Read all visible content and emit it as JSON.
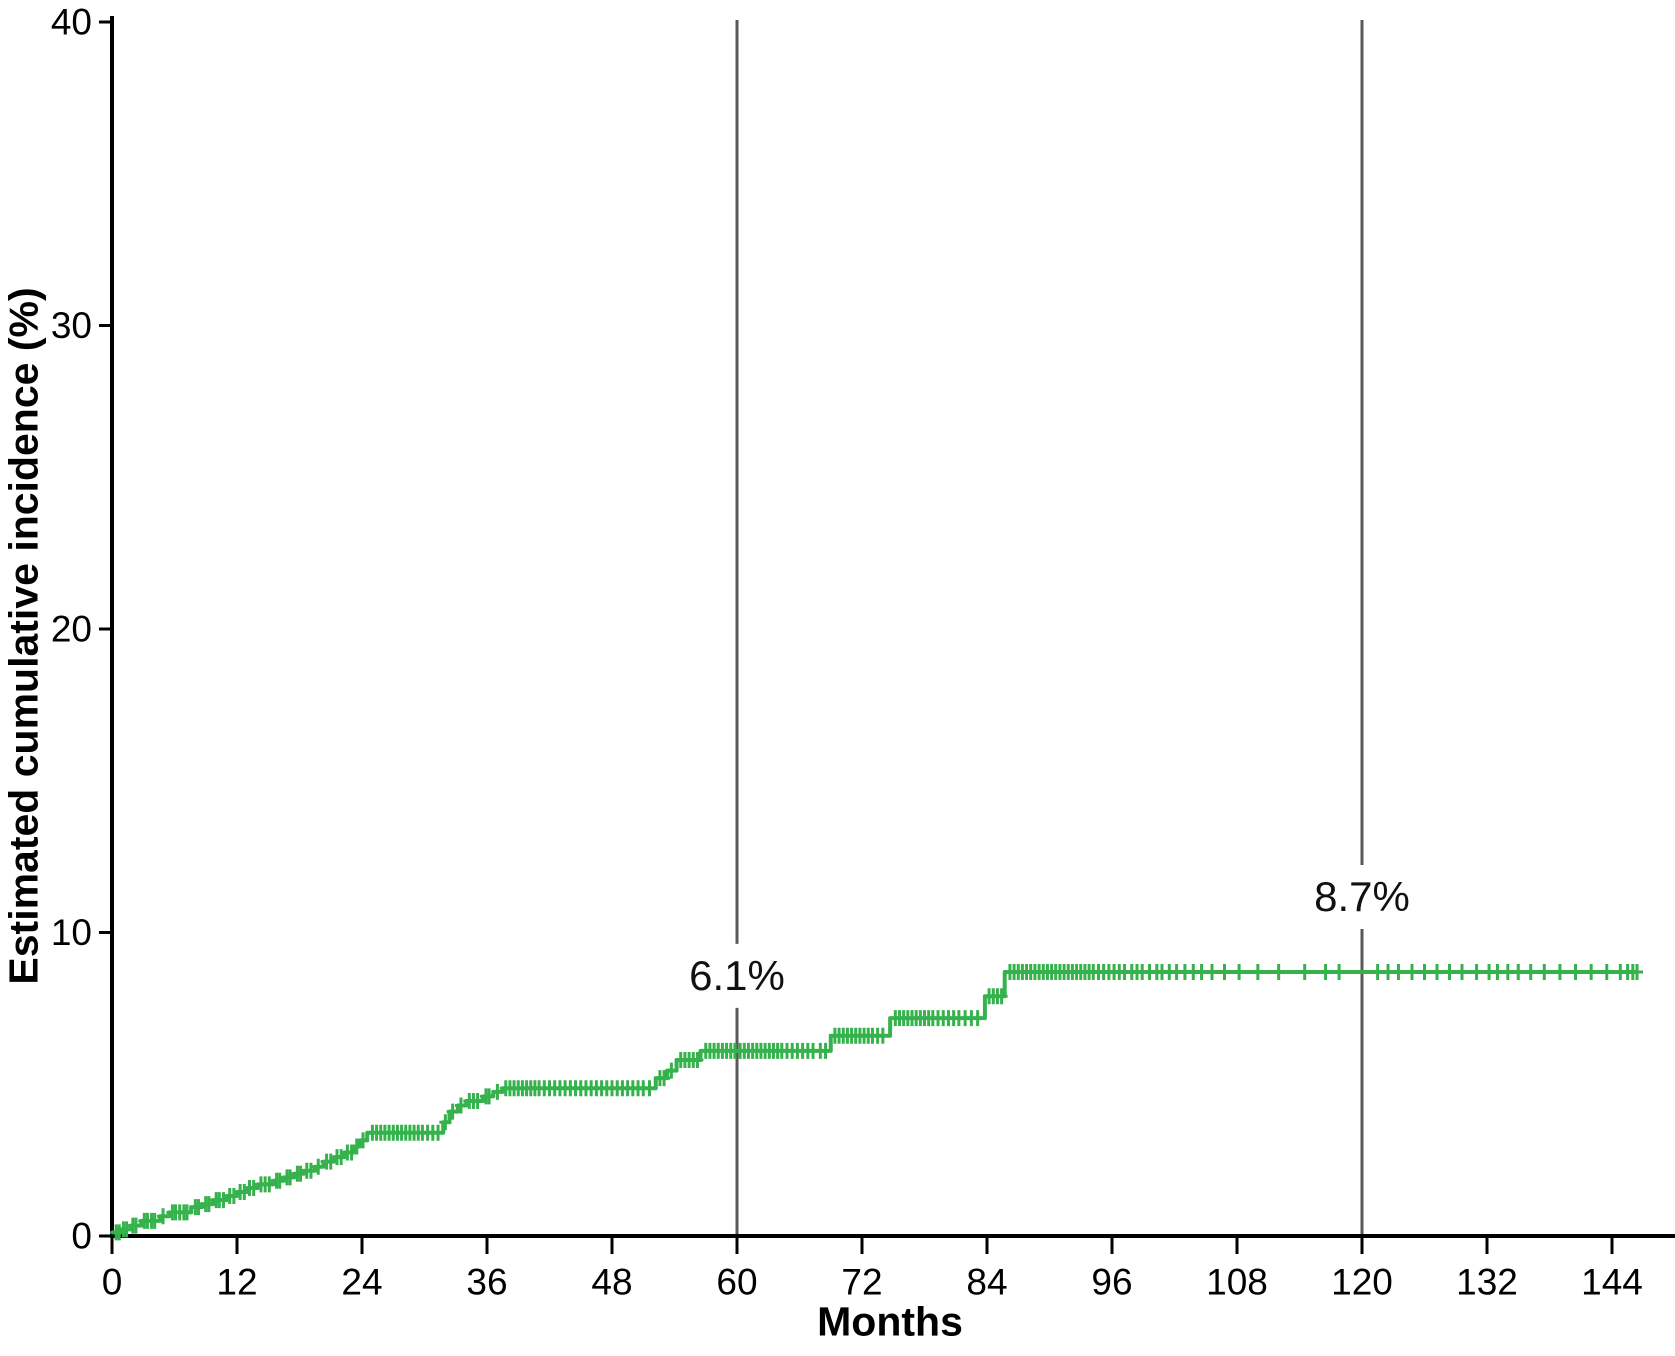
{
  "chart_data": {
    "type": "line",
    "subtype": "kaplan-meier-step-curve-with-censor-marks",
    "title": "",
    "xlabel": "Months",
    "ylabel": "Estimated cumulative incidence (%)",
    "xlim": [
      0,
      148.5
    ],
    "ylim": [
      0,
      40
    ],
    "x_ticks": [
      0,
      12,
      24,
      36,
      48,
      60,
      72,
      84,
      96,
      108,
      120,
      132,
      144
    ],
    "y_ticks": [
      0,
      10,
      20,
      30,
      40
    ],
    "grid": false,
    "legend": "none",
    "colors": {
      "curve": "#35B24C",
      "reference_line": "#595959",
      "axis": "#000000",
      "text": "#000000"
    },
    "reference_lines": [
      {
        "x": 60,
        "label": "6.1%",
        "value_at_line": 6.1
      },
      {
        "x": 120,
        "label": "8.7%",
        "value_at_line": 8.7
      }
    ],
    "series": [
      {
        "name": "Estimated cumulative incidence",
        "steps": [
          [
            0,
            0.12
          ],
          [
            0.9,
            0.22
          ],
          [
            1.8,
            0.34
          ],
          [
            2.8,
            0.5
          ],
          [
            4.6,
            0.65
          ],
          [
            5.5,
            0.78
          ],
          [
            7.6,
            0.95
          ],
          [
            8.6,
            1.05
          ],
          [
            9.7,
            1.18
          ],
          [
            11,
            1.32
          ],
          [
            12,
            1.45
          ],
          [
            13,
            1.58
          ],
          [
            14,
            1.7
          ],
          [
            15.5,
            1.82
          ],
          [
            16.5,
            1.93
          ],
          [
            17.5,
            2.05
          ],
          [
            18.4,
            2.15
          ],
          [
            19.5,
            2.28
          ],
          [
            20.3,
            2.45
          ],
          [
            21.3,
            2.6
          ],
          [
            22.3,
            2.75
          ],
          [
            23.2,
            2.95
          ],
          [
            23.8,
            3.15
          ],
          [
            24.5,
            3.4
          ],
          [
            31.8,
            3.75
          ],
          [
            32.4,
            4.1
          ],
          [
            33.2,
            4.3
          ],
          [
            34,
            4.45
          ],
          [
            35.6,
            4.6
          ],
          [
            36.6,
            4.75
          ],
          [
            37.5,
            4.87
          ],
          [
            52.2,
            5.2
          ],
          [
            53.3,
            5.45
          ],
          [
            54.2,
            5.8
          ],
          [
            56.5,
            6.1
          ],
          [
            69,
            6.6
          ],
          [
            74.7,
            7.18
          ],
          [
            83.8,
            7.9
          ],
          [
            85.7,
            8.7
          ],
          [
            146.5,
            8.7
          ]
        ]
      }
    ],
    "censor_marks_months": [
      0.4,
      0.7,
      1.1,
      1.4,
      2.0,
      2.3,
      3.1,
      3.4,
      3.8,
      4.1,
      4.9,
      5.8,
      6.1,
      6.5,
      6.9,
      7.2,
      8.0,
      8.3,
      9.0,
      9.3,
      10.0,
      10.3,
      10.7,
      11.3,
      11.7,
      12.3,
      12.7,
      13.2,
      13.6,
      14.3,
      14.7,
      15.1,
      15.8,
      16.1,
      16.8,
      17.1,
      17.8,
      18.1,
      18.7,
      19.1,
      19.8,
      20.6,
      21.0,
      21.6,
      22.0,
      22.6,
      23.0,
      23.5,
      24.1,
      25.0,
      25.4,
      25.8,
      26.2,
      26.6,
      27.0,
      27.4,
      27.8,
      28.2,
      28.6,
      29.0,
      29.4,
      29.8,
      30.3,
      30.8,
      31.3,
      32.0,
      32.7,
      33.5,
      34.3,
      34.7,
      35.1,
      35.9,
      36.2,
      37.0,
      37.8,
      38.2,
      38.6,
      39.0,
      39.4,
      39.8,
      40.2,
      40.6,
      41.0,
      41.5,
      42.0,
      42.5,
      43.0,
      43.5,
      44.0,
      44.5,
      45.0,
      45.5,
      46.0,
      46.5,
      47.0,
      47.5,
      48.0,
      48.5,
      49.0,
      49.5,
      50.0,
      50.5,
      51.0,
      51.6,
      52.6,
      53.0,
      53.7,
      54.6,
      55.0,
      55.4,
      55.8,
      56.2,
      57.0,
      57.4,
      57.8,
      58.2,
      58.6,
      59.0,
      59.4,
      59.8,
      60.3,
      60.7,
      61.1,
      61.5,
      61.9,
      62.3,
      62.7,
      63.1,
      63.5,
      63.9,
      64.3,
      64.8,
      65.3,
      65.8,
      66.3,
      66.8,
      67.3,
      68.0,
      68.5,
      69.4,
      69.8,
      70.2,
      70.6,
      71.0,
      71.4,
      71.8,
      72.2,
      72.6,
      73.0,
      73.5,
      74.0,
      75.2,
      75.6,
      76.0,
      76.4,
      76.8,
      77.2,
      77.6,
      78.0,
      78.4,
      78.8,
      79.3,
      79.8,
      80.3,
      80.8,
      81.3,
      81.9,
      82.5,
      83.1,
      84.2,
      84.6,
      85.0,
      85.4,
      86.2,
      86.6,
      87.0,
      87.4,
      87.8,
      88.2,
      88.6,
      89.0,
      89.4,
      89.8,
      90.2,
      90.6,
      91.0,
      91.4,
      91.8,
      92.2,
      92.6,
      93.0,
      93.4,
      93.8,
      94.2,
      94.7,
      95.2,
      95.7,
      96.2,
      96.7,
      97.2,
      97.9,
      98.4,
      98.9,
      99.6,
      100.3,
      100.8,
      101.5,
      102.2,
      103.0,
      103.8,
      104.6,
      105.6,
      106.8,
      108.2,
      110.0,
      112.0,
      114.5,
      116.5,
      117.8,
      121.5,
      122.5,
      123.5,
      124.8,
      126.0,
      127.2,
      128.4,
      129.6,
      131.0,
      132.2,
      133.0,
      134.0,
      135.0,
      136.2,
      137.5,
      139.0,
      140.5,
      142.0,
      143.5,
      144.8,
      145.5,
      146.0,
      146.4
    ]
  }
}
